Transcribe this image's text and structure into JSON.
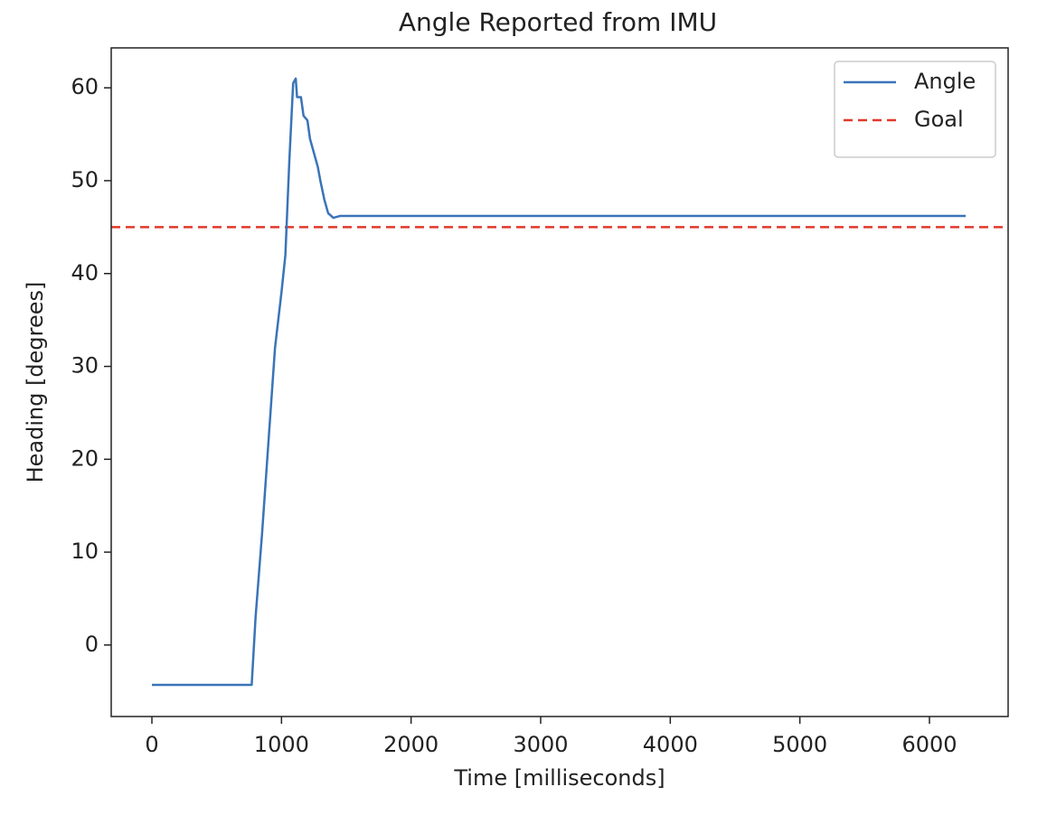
{
  "chart_data": {
    "type": "line",
    "title": "Angle Reported from IMU",
    "x_label": "Time [milliseconds]",
    "y_label": "Heading [degrees]",
    "series": [
      {
        "name": "Angle",
        "color": "#3a74b8",
        "x": [
          0,
          770,
          800,
          850,
          900,
          950,
          1000,
          1030,
          1060,
          1090,
          1110,
          1120,
          1150,
          1170,
          1200,
          1220,
          1250,
          1280,
          1300,
          1330,
          1360,
          1400,
          1450,
          1800,
          6280
        ],
        "values": [
          -4.3,
          -4.3,
          3,
          12,
          22,
          32,
          38,
          42,
          52,
          60.5,
          61,
          59,
          59,
          57,
          56.5,
          54.5,
          53,
          51.5,
          50,
          48,
          46.5,
          46,
          46.2,
          46.2,
          46.2
        ]
      }
    ],
    "hlines": [
      {
        "name": "Goal",
        "color": "#e0392b",
        "value": 45,
        "style": "dashed"
      }
    ],
    "xlim": [
      -314,
      6607
    ],
    "ylim": [
      -7.7,
      64.3
    ],
    "xticks": [
      0,
      1000,
      2000,
      3000,
      4000,
      5000,
      6000
    ],
    "yticks": [
      0,
      10,
      20,
      30,
      40,
      50,
      60
    ],
    "legend": "upper right",
    "grid": false
  }
}
